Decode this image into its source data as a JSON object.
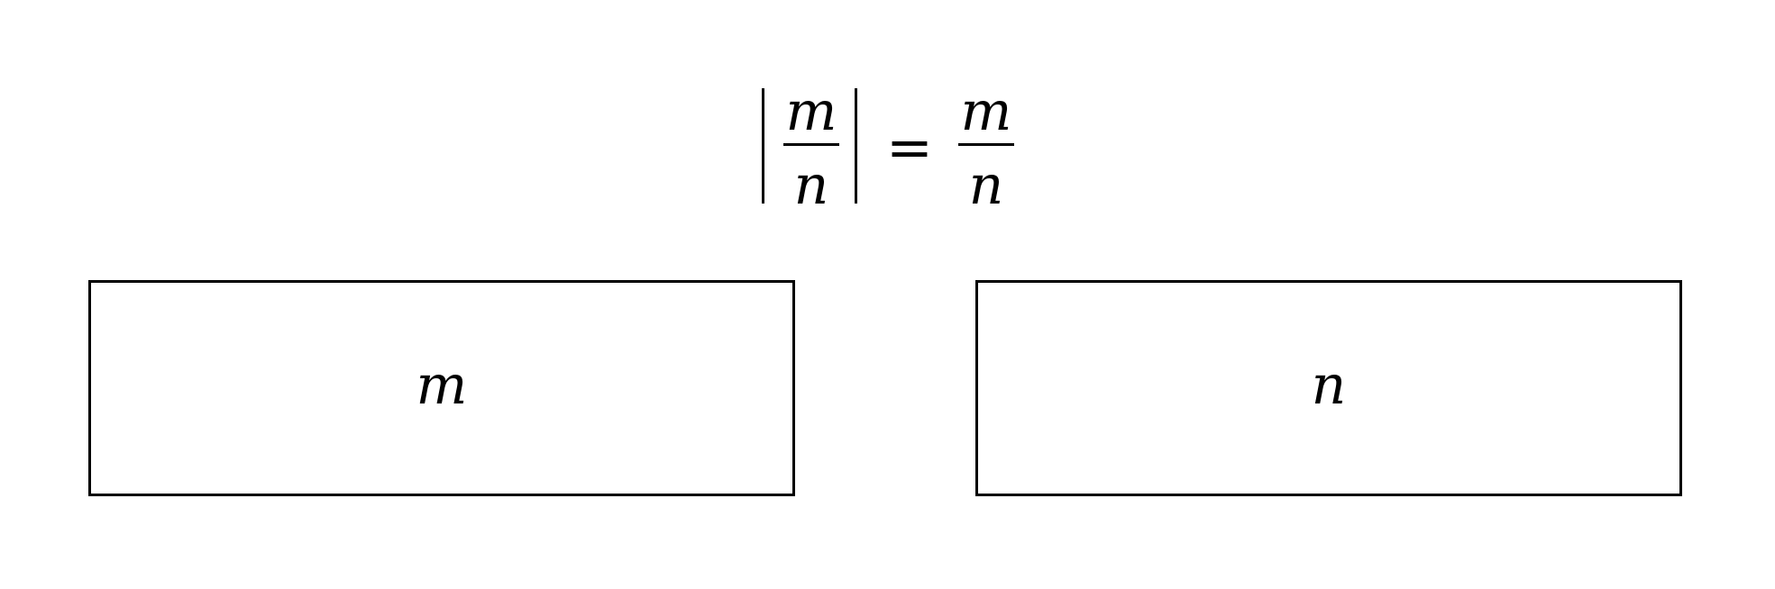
{
  "formula": {
    "left_fraction": {
      "numerator": "m",
      "denominator": "n"
    },
    "operator": "=",
    "right_fraction": {
      "numerator": "m",
      "denominator": "n"
    }
  },
  "boxes": [
    {
      "label": "m"
    },
    {
      "label": "n"
    }
  ]
}
